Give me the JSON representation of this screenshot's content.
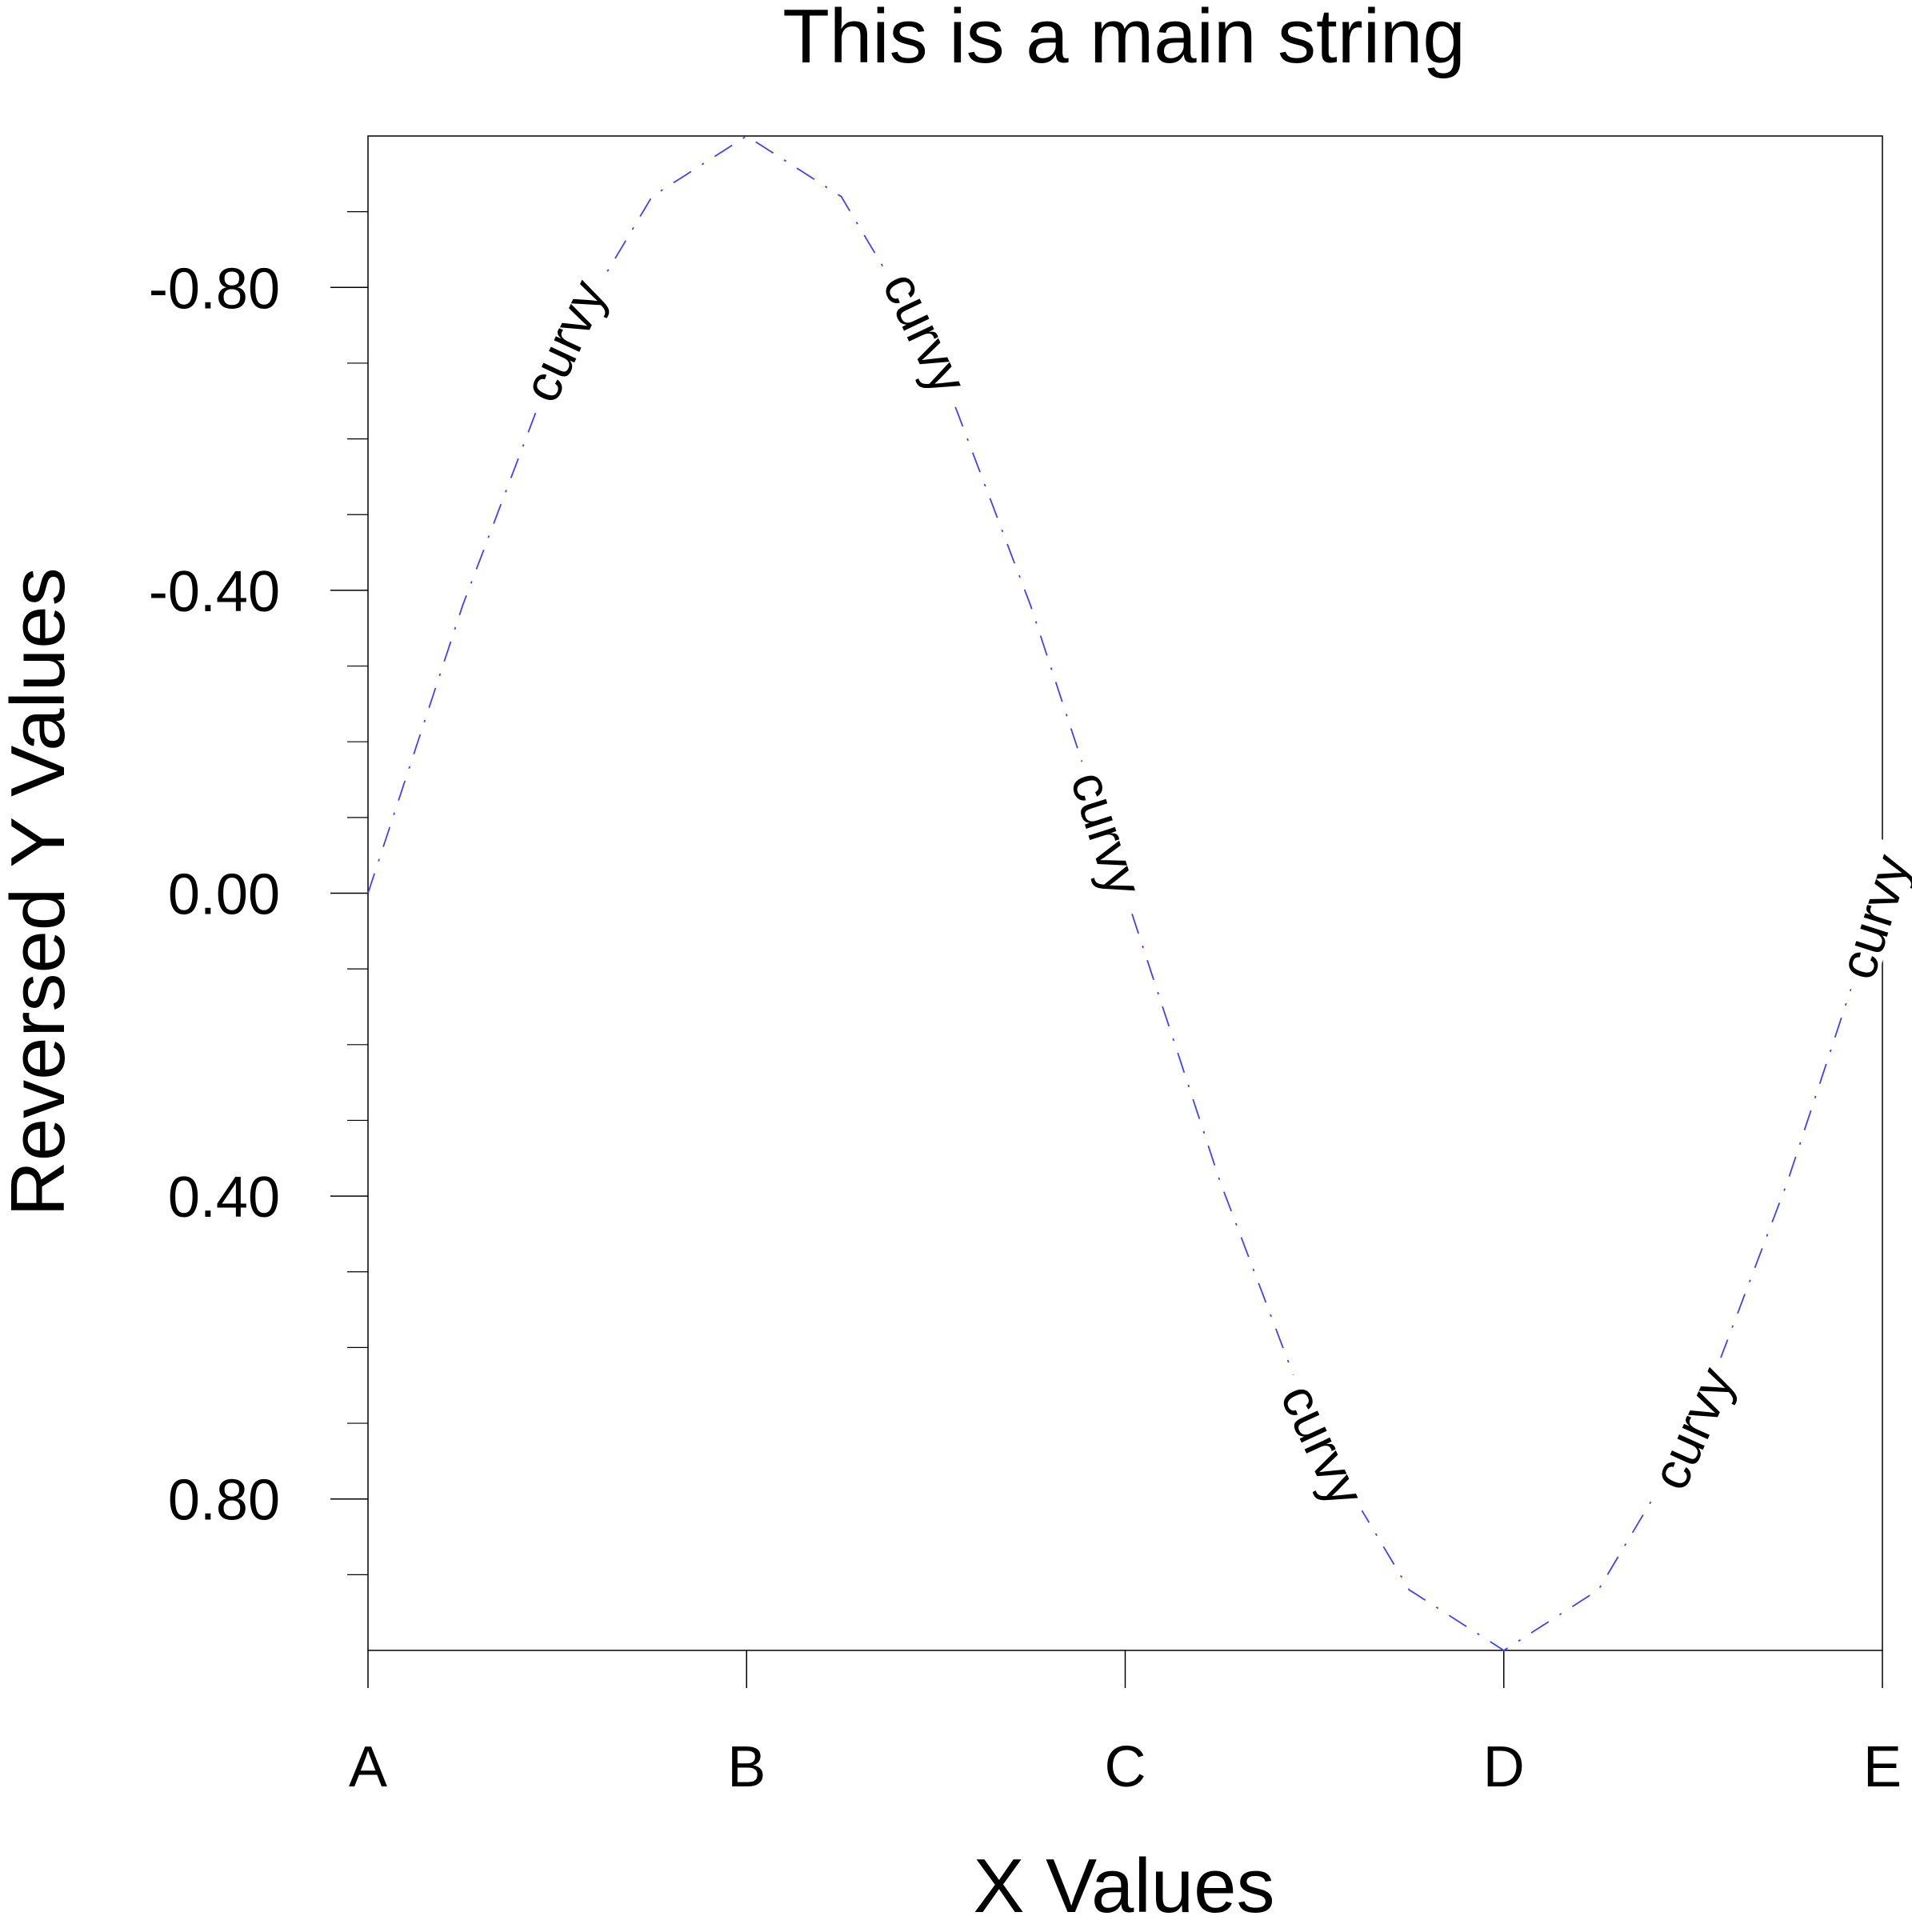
{
  "chart_data": {
    "type": "line",
    "title": "This is a main string",
    "xlabel": "X Values",
    "ylabel": "Reversed Y Values",
    "x_range": [
      0,
      4
    ],
    "x_tick_values": [
      0,
      1,
      2,
      3,
      4
    ],
    "x_tick_labels": [
      "A",
      "B",
      "C",
      "D",
      "E"
    ],
    "y_range": [
      -1,
      1
    ],
    "y_reversed": true,
    "y_major_ticks": [
      -0.8,
      -0.4,
      0.0,
      0.4,
      0.8
    ],
    "y_tick_labels": [
      "-0.80",
      "-0.40",
      "0.00",
      "0.40",
      "0.80"
    ],
    "y_minor_step": 0.1,
    "grid": false,
    "series": [
      {
        "line_style": "dash-dot",
        "line_label": "curvy",
        "color": "#4040ff",
        "x": [
          0,
          0.25,
          0.5,
          0.75,
          1.0,
          1.25,
          1.5,
          1.75,
          2.0,
          2.25,
          2.5,
          2.75,
          3.0,
          3.25,
          3.5,
          3.75,
          4.0
        ],
        "y": [
          0,
          -0.38,
          -0.71,
          -0.92,
          -1.0,
          -0.92,
          -0.71,
          -0.38,
          0,
          0.38,
          0.71,
          0.92,
          1.0,
          0.92,
          0.71,
          0.38,
          0
        ]
      }
    ]
  }
}
